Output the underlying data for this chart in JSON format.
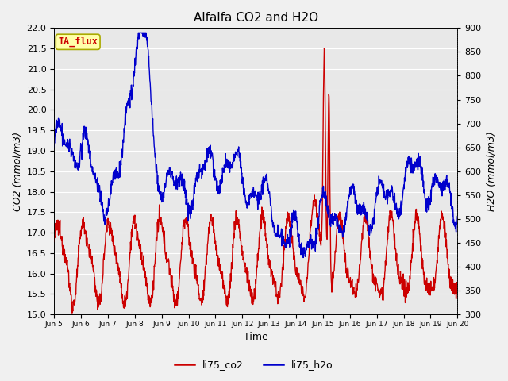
{
  "title": "Alfalfa CO2 and H2O",
  "xlabel": "Time",
  "ylabel_left": "CO2 (mmol/m3)",
  "ylabel_right": "H2O (mmol/m3)",
  "ylim_left": [
    15.0,
    22.0
  ],
  "ylim_right": [
    300,
    900
  ],
  "xtick_labels": [
    "Jun 5",
    "Jun 6",
    "Jun 7",
    "Jun 8",
    "Jun 9",
    "Jun 10",
    "Jun 11",
    "Jun 12",
    "Jun 13",
    "Jun 14",
    "Jun 15",
    "Jun 16",
    "Jun 17",
    "Jun 18",
    "Jun 19",
    "Jun 20"
  ],
  "color_co2": "#cc0000",
  "color_h2o": "#0000cc",
  "legend_entries": [
    "li75_co2",
    "li75_h2o"
  ],
  "annotation_text": "TA_flux",
  "annotation_color": "#cc0000",
  "annotation_bg": "#ffffaa",
  "annotation_edge": "#aaaa00",
  "plot_bg": "#e8e8e8",
  "fig_bg": "#f0f0f0",
  "grid_color": "#ffffff",
  "title_fontsize": 11,
  "label_fontsize": 9,
  "tick_fontsize": 8,
  "legend_fontsize": 9,
  "linewidth": 1.0
}
